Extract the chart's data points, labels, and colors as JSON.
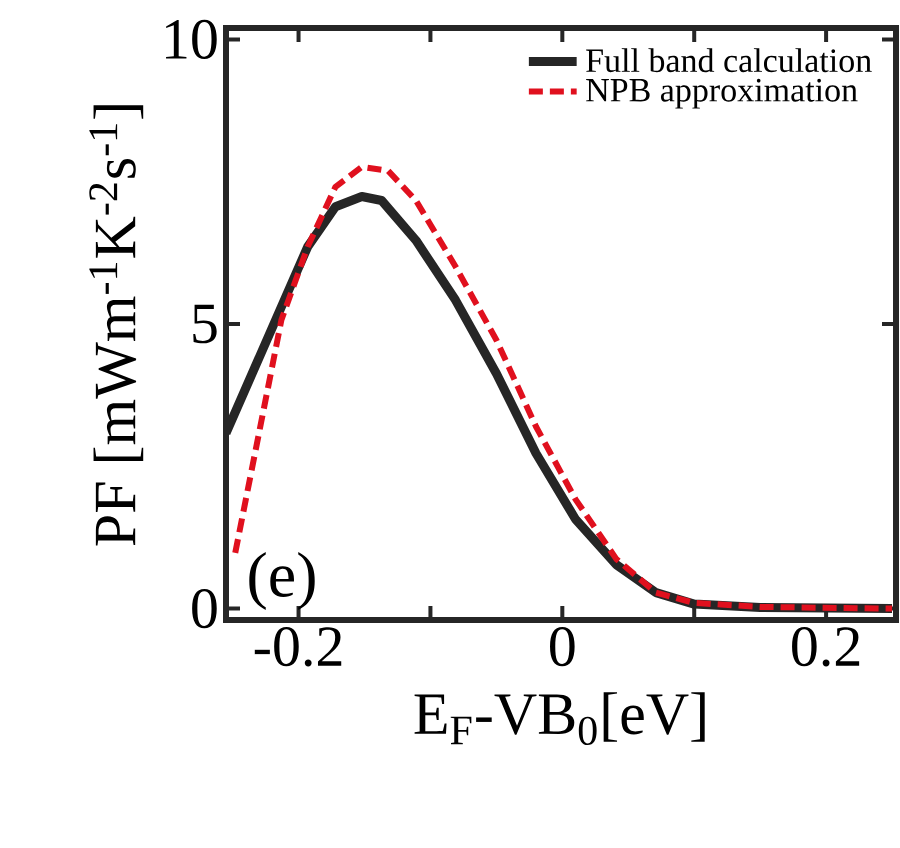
{
  "chart_data": {
    "type": "line",
    "xlabel": "E$_{F}$-VB$_{0}$[eV]",
    "ylabel": "PF [mWm$^{-1}$K$^{-2}$s$^{-1}$]",
    "annotations": [
      "(e)"
    ],
    "xlim": [
      -0.255,
      0.253
    ],
    "ylim": [
      -0.2,
      10.2
    ],
    "xticks": [
      -0.2,
      {
        "value": -0.1,
        "label": null
      },
      0,
      {
        "value": 0.1,
        "label": null
      },
      0.2
    ],
    "yticks": [
      0,
      5,
      10
    ],
    "legend": "top right",
    "grid": false,
    "marker": "none",
    "series": [
      {
        "name": "Full band calculation",
        "color": "#262626",
        "line_style": "solid",
        "x": [
          -0.255,
          -0.224,
          -0.193,
          -0.172,
          -0.152,
          -0.137,
          -0.111,
          -0.081,
          -0.05,
          -0.02,
          0.01,
          0.041,
          0.071,
          0.1,
          0.15,
          0.25
        ],
        "values": [
          3.08,
          4.72,
          6.36,
          7.06,
          7.24,
          7.17,
          6.47,
          5.42,
          4.13,
          2.73,
          1.57,
          0.77,
          0.28,
          0.08,
          0.02,
          0.0
        ]
      },
      {
        "name": "NPB approximation",
        "color": "#e0101e",
        "line_style": "dashed",
        "x": [
          -0.248,
          -0.233,
          -0.213,
          -0.193,
          -0.172,
          -0.152,
          -0.132,
          -0.111,
          -0.081,
          -0.05,
          -0.02,
          0.01,
          0.041,
          0.071,
          0.1,
          0.15,
          0.25
        ],
        "values": [
          0.98,
          2.73,
          5.07,
          6.36,
          7.41,
          7.76,
          7.69,
          7.17,
          6.01,
          4.72,
          3.2,
          1.92,
          0.87,
          0.28,
          0.1,
          0.03,
          0.0
        ]
      }
    ]
  }
}
